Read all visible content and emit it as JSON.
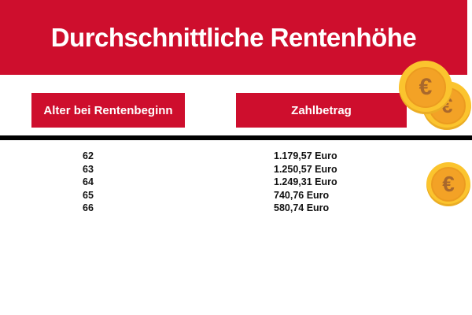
{
  "title": "Durchschnittliche Rentenhöhe",
  "table": {
    "headers": [
      "Alter bei Rentenbeginn",
      "Zahlbetrag"
    ],
    "rows": [
      {
        "age": "62",
        "amount": "1.179,57 Euro"
      },
      {
        "age": "63",
        "amount": "1.250,57 Euro"
      },
      {
        "age": "64",
        "amount": "1.249,31 Euro"
      },
      {
        "age": "65",
        "amount": "740,76 Euro"
      },
      {
        "age": "66",
        "amount": "580,74 Euro"
      }
    ]
  },
  "icons": {
    "euro_symbol": "€"
  },
  "colors": {
    "accent_red": "#CE0E2D",
    "divider_black": "#000000",
    "coin_gold": "#FBC42E",
    "coin_orange": "#F3A226",
    "coin_symbol_brown": "#A9682C",
    "text_black": "#111111",
    "text_white": "#FFFFFF"
  },
  "chart_data": {
    "type": "table",
    "title": "Durchschnittliche Rentenhöhe",
    "columns": [
      "Alter bei Rentenbeginn",
      "Zahlbetrag"
    ],
    "categories": [
      62,
      63,
      64,
      65,
      66
    ],
    "values": [
      1179.57,
      1250.57,
      1249.31,
      740.76,
      580.74
    ],
    "value_unit": "Euro",
    "value_labels": [
      "1.179,57 Euro",
      "1.250,57 Euro",
      "1.249,31 Euro",
      "740,76 Euro",
      "580,74 Euro"
    ]
  }
}
